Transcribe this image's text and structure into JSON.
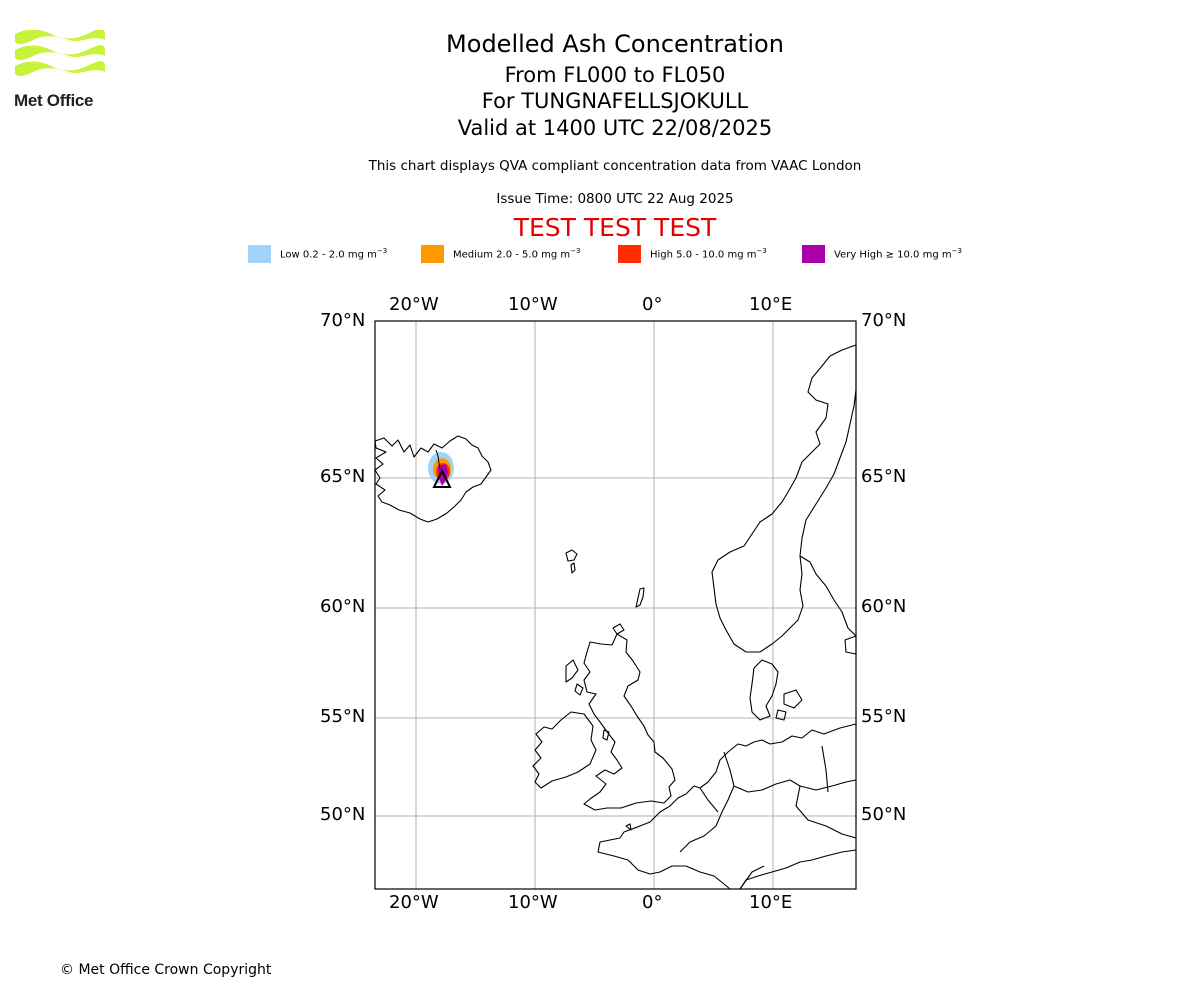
{
  "header": {
    "logo_text": "Met Office",
    "title": "Modelled Ash Concentration",
    "level_range": "From FL000 to FL050",
    "volcano": "For TUNGNAFELLSJOKULL",
    "valid_time": "Valid at 1400 UTC 22/08/2025",
    "note": "This chart displays QVA compliant concentration data from VAAC London",
    "issue_time": "Issue Time: 0800 UTC 22 Aug 2025",
    "test_banner": "TEST TEST TEST"
  },
  "legend": [
    {
      "label": "Low 0.2 - 2.0 mg m",
      "color": "#a0d2fa"
    },
    {
      "label": "Medium 2.0 - 5.0 mg m",
      "color": "#ff9900"
    },
    {
      "label": "High 5.0 - 10.0 mg m",
      "color": "#ff2d00"
    },
    {
      "label": "Very High ≥ 10.0 mg m",
      "color": "#aa00aa"
    }
  ],
  "legend_unit_exponent": "−3",
  "map": {
    "lon_labels": [
      "20°W",
      "10°W",
      "0°",
      "10°E"
    ],
    "lat_labels": [
      "70°N",
      "65°N",
      "60°N",
      "55°N",
      "50°N"
    ],
    "gridlines": true,
    "volcano_marker": "triangle",
    "ash_levels": [
      "Low",
      "Medium",
      "High",
      "Very High"
    ]
  },
  "footer": {
    "copyright": "© Met Office Crown Copyright"
  }
}
